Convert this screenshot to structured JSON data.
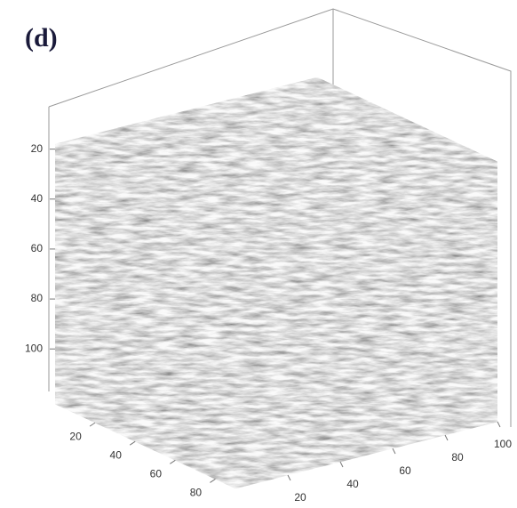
{
  "chart_data": {
    "type": "cube",
    "title": "(d)",
    "xlim": [
      0,
      90
    ],
    "xticks": [
      20,
      40,
      60,
      80
    ],
    "ylim": [
      0,
      100
    ],
    "yticks": [
      20,
      40,
      60,
      80,
      100
    ],
    "zlim": [
      18,
      122
    ],
    "zticks": [
      20,
      40,
      60,
      80,
      100
    ]
  }
}
